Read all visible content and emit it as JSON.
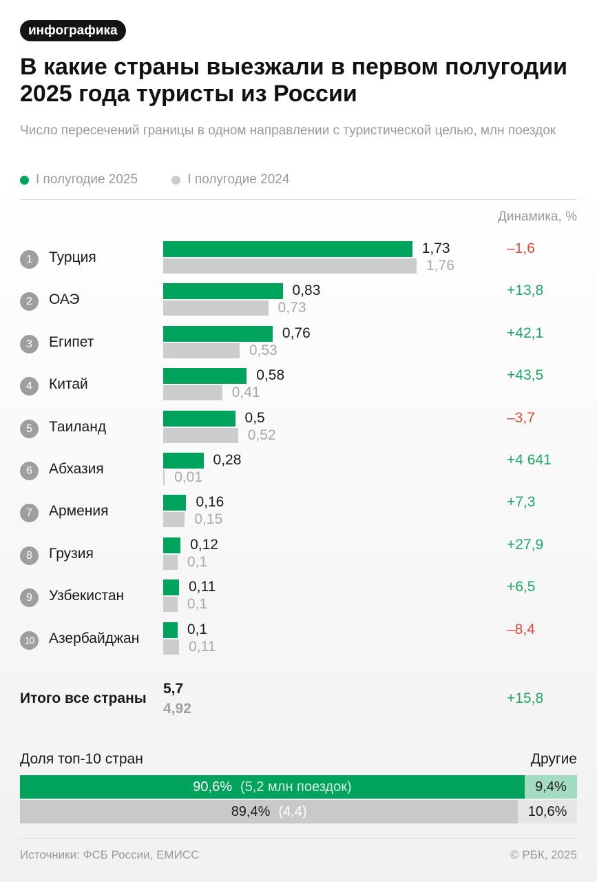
{
  "tag": "инфографика",
  "title": "В какие страны выезжали в первом полугодии 2025 года туристы из России",
  "subtitle": "Число пересечений границы в одном направлении с туристической целью, млн поездок",
  "legend": [
    {
      "label": "I полугодие 2025",
      "color": "#00a35c"
    },
    {
      "label": "I полугодие 2024",
      "color": "#cccccc"
    }
  ],
  "dynamics_header": "Динамика, %",
  "colors": {
    "positive": "#1aa765",
    "negative": "#e0463e",
    "bar2025": "#00a35c",
    "bar2024": "#cccccc"
  },
  "chart_data": {
    "type": "bar",
    "orientation": "horizontal",
    "categories": [
      "Турция",
      "ОАЭ",
      "Египет",
      "Китай",
      "Таиланд",
      "Абхазия",
      "Армения",
      "Грузия",
      "Узбекистан",
      "Азербайджан"
    ],
    "ranks": [
      "1",
      "2",
      "3",
      "4",
      "5",
      "6",
      "7",
      "8",
      "9",
      "10"
    ],
    "series": [
      {
        "name": "I полугодие 2025",
        "values": [
          1.73,
          0.83,
          0.76,
          0.58,
          0.5,
          0.28,
          0.16,
          0.12,
          0.11,
          0.1
        ],
        "labels": [
          "1,73",
          "0,83",
          "0,76",
          "0,58",
          "0,5",
          "0,28",
          "0,16",
          "0,12",
          "0,11",
          "0,1"
        ]
      },
      {
        "name": "I полугодие 2024",
        "values": [
          1.76,
          0.73,
          0.53,
          0.41,
          0.52,
          0.01,
          0.15,
          0.1,
          0.1,
          0.11
        ],
        "labels": [
          "1,76",
          "0,73",
          "0,53",
          "0,41",
          "0,52",
          "0,01",
          "0,15",
          "0,1",
          "0,1",
          "0,11"
        ]
      }
    ],
    "dynamics": [
      "–1,6",
      "+13,8",
      "+42,1",
      "+43,5",
      "–3,7",
      "+4 641",
      "+7,3",
      "+27,9",
      "+6,5",
      "–8,4"
    ],
    "xlim": [
      0,
      1.76
    ]
  },
  "total": {
    "label": "Итого все страны",
    "v2025": "5,7",
    "v2024": "4,92",
    "dynamics": "+15,8"
  },
  "share": {
    "label": "Доля топ-10 стран",
    "others_label": "Другие",
    "rows": [
      {
        "top10": 90.6,
        "top10_label": "90,6%",
        "note": "(5,2 млн поездок)",
        "others": 9.4,
        "others_label": "9,4%",
        "color_main": "#00a35c",
        "color_rest": "#a3dcc0",
        "text_main": "#ffffff",
        "note_color": "#d4f0e2"
      },
      {
        "top10": 89.4,
        "top10_label": "89,4%",
        "note": "(4,4)",
        "others": 10.6,
        "others_label": "10,6%",
        "color_main": "#c9c9c9",
        "color_rest": "#e6e6e6",
        "text_main": "#1a1a1a",
        "note_color": "#ffffff"
      }
    ]
  },
  "footer": {
    "sources": "Источники: ФСБ России, ЕМИСС",
    "copyright": "© РБК, 2025"
  }
}
